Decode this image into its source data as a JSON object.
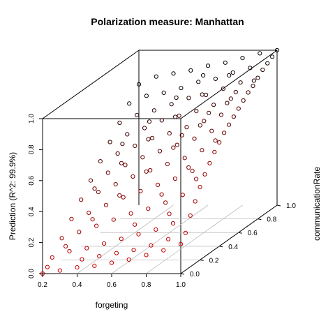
{
  "chart_data": {
    "type": "scatter3d",
    "title": "Polarization measure: Manhattan",
    "xlabel": "forgeting",
    "ylabel": "communicationRate",
    "zlabel": "Prediction (R^2: 99.9%)",
    "xlim": [
      0.2,
      1.0
    ],
    "ylim": [
      0.0,
      1.0
    ],
    "zlim": [
      0.0,
      1.0
    ],
    "x_ticks": [
      "0.2",
      "0.4",
      "0.6",
      "0.8",
      "1.0"
    ],
    "y_ticks": [
      "0.0",
      "0.2",
      "0.4",
      "0.6",
      "0.8",
      "1.0"
    ],
    "z_ticks": [
      "0.0",
      "0.2",
      "0.4",
      "0.6",
      "0.8",
      "1.0"
    ],
    "grid": true,
    "points_note": "points approximate the sampled grid of forgeting x communicationRate",
    "color_near": "#cc0000",
    "color_far": "#000000",
    "points": [
      [
        0.2,
        0.0,
        0.0
      ],
      [
        0.2,
        0.05,
        0.02
      ],
      [
        0.2,
        0.1,
        0.06
      ],
      [
        0.2,
        0.2,
        0.14
      ],
      [
        0.2,
        0.3,
        0.22
      ],
      [
        0.2,
        0.4,
        0.3
      ],
      [
        0.2,
        0.5,
        0.38
      ],
      [
        0.2,
        0.6,
        0.46
      ],
      [
        0.2,
        0.7,
        0.54
      ],
      [
        0.2,
        0.8,
        0.62
      ],
      [
        0.2,
        0.9,
        0.7
      ],
      [
        0.2,
        1.0,
        0.78
      ],
      [
        0.3,
        0.0,
        0.02
      ],
      [
        0.3,
        0.1,
        0.1
      ],
      [
        0.3,
        0.2,
        0.18
      ],
      [
        0.3,
        0.3,
        0.26
      ],
      [
        0.3,
        0.4,
        0.35
      ],
      [
        0.3,
        0.5,
        0.43
      ],
      [
        0.3,
        0.6,
        0.51
      ],
      [
        0.3,
        0.7,
        0.59
      ],
      [
        0.3,
        0.8,
        0.67
      ],
      [
        0.3,
        0.9,
        0.75
      ],
      [
        0.3,
        1.0,
        0.83
      ],
      [
        0.4,
        0.0,
        0.04
      ],
      [
        0.4,
        0.05,
        0.07
      ],
      [
        0.4,
        0.1,
        0.12
      ],
      [
        0.4,
        0.2,
        0.22
      ],
      [
        0.4,
        0.3,
        0.31
      ],
      [
        0.4,
        0.4,
        0.4
      ],
      [
        0.4,
        0.5,
        0.48
      ],
      [
        0.4,
        0.6,
        0.56
      ],
      [
        0.4,
        0.7,
        0.63
      ],
      [
        0.4,
        0.8,
        0.7
      ],
      [
        0.4,
        0.9,
        0.77
      ],
      [
        0.4,
        1.0,
        0.85
      ],
      [
        0.5,
        0.0,
        0.05
      ],
      [
        0.5,
        0.05,
        0.09
      ],
      [
        0.5,
        0.1,
        0.15
      ],
      [
        0.5,
        0.2,
        0.26
      ],
      [
        0.5,
        0.3,
        0.36
      ],
      [
        0.5,
        0.4,
        0.45
      ],
      [
        0.5,
        0.5,
        0.53
      ],
      [
        0.5,
        0.6,
        0.61
      ],
      [
        0.5,
        0.7,
        0.68
      ],
      [
        0.5,
        0.8,
        0.74
      ],
      [
        0.5,
        0.9,
        0.8
      ],
      [
        0.5,
        1.0,
        0.87
      ],
      [
        0.6,
        0.0,
        0.07
      ],
      [
        0.6,
        0.05,
        0.11
      ],
      [
        0.6,
        0.1,
        0.18
      ],
      [
        0.6,
        0.2,
        0.3
      ],
      [
        0.6,
        0.3,
        0.4
      ],
      [
        0.6,
        0.4,
        0.49
      ],
      [
        0.6,
        0.5,
        0.57
      ],
      [
        0.6,
        0.6,
        0.64
      ],
      [
        0.6,
        0.7,
        0.71
      ],
      [
        0.6,
        0.8,
        0.78
      ],
      [
        0.6,
        0.9,
        0.84
      ],
      [
        0.6,
        1.0,
        0.9
      ],
      [
        0.7,
        0.0,
        0.09
      ],
      [
        0.7,
        0.05,
        0.13
      ],
      [
        0.7,
        0.1,
        0.21
      ],
      [
        0.7,
        0.2,
        0.33
      ],
      [
        0.7,
        0.3,
        0.44
      ],
      [
        0.7,
        0.4,
        0.53
      ],
      [
        0.7,
        0.5,
        0.61
      ],
      [
        0.7,
        0.6,
        0.68
      ],
      [
        0.7,
        0.7,
        0.74
      ],
      [
        0.7,
        0.8,
        0.8
      ],
      [
        0.7,
        0.9,
        0.86
      ],
      [
        0.7,
        1.0,
        0.92
      ],
      [
        0.8,
        0.0,
        0.12
      ],
      [
        0.8,
        0.05,
        0.16
      ],
      [
        0.8,
        0.1,
        0.24
      ],
      [
        0.8,
        0.2,
        0.37
      ],
      [
        0.8,
        0.3,
        0.48
      ],
      [
        0.8,
        0.4,
        0.57
      ],
      [
        0.8,
        0.5,
        0.65
      ],
      [
        0.8,
        0.6,
        0.72
      ],
      [
        0.8,
        0.7,
        0.78
      ],
      [
        0.8,
        0.8,
        0.84
      ],
      [
        0.8,
        0.9,
        0.9
      ],
      [
        0.8,
        1.0,
        0.95
      ],
      [
        0.9,
        0.0,
        0.15
      ],
      [
        0.9,
        0.05,
        0.2
      ],
      [
        0.9,
        0.1,
        0.28
      ],
      [
        0.9,
        0.2,
        0.42
      ],
      [
        0.9,
        0.3,
        0.53
      ],
      [
        0.9,
        0.4,
        0.62
      ],
      [
        0.9,
        0.5,
        0.7
      ],
      [
        0.9,
        0.6,
        0.76
      ],
      [
        0.9,
        0.7,
        0.82
      ],
      [
        0.9,
        0.8,
        0.88
      ],
      [
        0.9,
        0.9,
        0.93
      ],
      [
        0.9,
        1.0,
        0.98
      ],
      [
        1.0,
        0.0,
        0.19
      ],
      [
        1.0,
        0.05,
        0.24
      ],
      [
        1.0,
        0.1,
        0.33
      ],
      [
        1.0,
        0.2,
        0.47
      ],
      [
        1.0,
        0.3,
        0.58
      ],
      [
        1.0,
        0.4,
        0.67
      ],
      [
        1.0,
        0.5,
        0.74
      ],
      [
        1.0,
        0.6,
        0.8
      ],
      [
        1.0,
        0.7,
        0.86
      ],
      [
        1.0,
        0.8,
        0.91
      ],
      [
        1.0,
        0.9,
        0.96
      ],
      [
        1.0,
        1.0,
        1.0
      ],
      [
        0.25,
        0.15,
        0.11
      ],
      [
        0.35,
        0.25,
        0.24
      ],
      [
        0.45,
        0.35,
        0.35
      ],
      [
        0.55,
        0.45,
        0.46
      ],
      [
        0.65,
        0.55,
        0.57
      ],
      [
        0.75,
        0.65,
        0.67
      ],
      [
        0.85,
        0.75,
        0.77
      ],
      [
        0.95,
        0.85,
        0.87
      ],
      [
        0.25,
        0.45,
        0.35
      ],
      [
        0.35,
        0.55,
        0.47
      ],
      [
        0.45,
        0.65,
        0.58
      ],
      [
        0.55,
        0.75,
        0.68
      ],
      [
        0.65,
        0.85,
        0.78
      ],
      [
        0.75,
        0.95,
        0.86
      ],
      [
        0.85,
        0.15,
        0.32
      ],
      [
        0.95,
        0.25,
        0.5
      ],
      [
        0.85,
        0.35,
        0.53
      ],
      [
        0.95,
        0.45,
        0.66
      ],
      [
        0.65,
        0.15,
        0.25
      ],
      [
        0.75,
        0.25,
        0.4
      ],
      [
        0.3,
        0.65,
        0.55
      ],
      [
        0.4,
        0.75,
        0.65
      ],
      [
        0.5,
        0.85,
        0.76
      ],
      [
        0.6,
        0.95,
        0.86
      ],
      [
        0.7,
        0.55,
        0.65
      ],
      [
        0.8,
        0.65,
        0.75
      ],
      [
        0.9,
        0.75,
        0.84
      ],
      [
        1.0,
        0.15,
        0.4
      ],
      [
        1.0,
        0.25,
        0.53
      ],
      [
        1.0,
        0.35,
        0.63
      ],
      [
        1.0,
        0.45,
        0.71
      ],
      [
        1.0,
        0.55,
        0.77
      ],
      [
        1.0,
        0.65,
        0.83
      ],
      [
        1.0,
        0.75,
        0.88
      ],
      [
        1.0,
        0.85,
        0.94
      ],
      [
        1.0,
        0.95,
        0.98
      ]
    ]
  }
}
